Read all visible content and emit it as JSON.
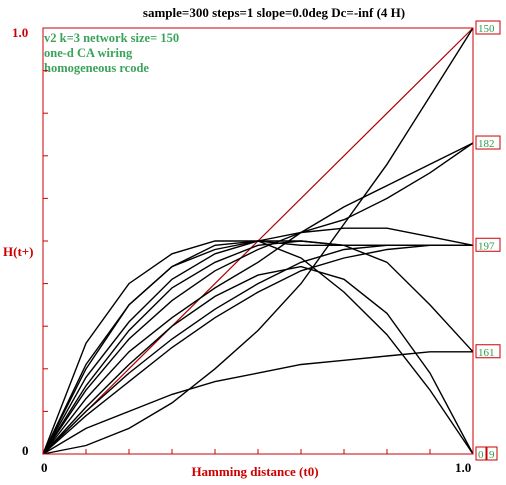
{
  "chart_data": {
    "type": "line",
    "title": "sample=300 steps=1  slope=0.0deg  Dc=-inf (4 H)",
    "xlabel": "Hamming distance (t0)",
    "ylabel": "H(t+)",
    "xlim": [
      0,
      1
    ],
    "ylim": [
      0,
      1
    ],
    "x_ticks": [
      "0",
      "1.0"
    ],
    "y_ticks": [
      "0",
      "1.0"
    ],
    "annotations": [
      "v2  k=3 network size= 150",
      "one-d CA wiring",
      "homogeneous rcode"
    ],
    "right_labels": [
      {
        "text": "150",
        "y": 1.0
      },
      {
        "text": "182",
        "y": 0.73
      },
      {
        "text": "197",
        "y": 0.49
      },
      {
        "text": "161",
        "y": 0.24
      },
      {
        "text": "0",
        "y": 0.0
      },
      {
        "text": "9",
        "y": 0.0
      }
    ],
    "series": [
      {
        "color": "#aa0000",
        "x": [
          0,
          1.0
        ],
        "y": [
          0,
          1.0
        ]
      },
      {
        "color": "#000000",
        "x": [
          0,
          0.1,
          0.2,
          0.3,
          0.4,
          0.5,
          0.6,
          0.7,
          0.8,
          0.9,
          1.0
        ],
        "y": [
          0,
          0.26,
          0.4,
          0.47,
          0.5,
          0.5,
          0.49,
          0.49,
          0.49,
          0.49,
          0.49
        ]
      },
      {
        "color": "#000000",
        "x": [
          0,
          0.1,
          0.2,
          0.3,
          0.4,
          0.5,
          0.6,
          0.7,
          0.8,
          0.9,
          1.0
        ],
        "y": [
          0,
          0.21,
          0.35,
          0.44,
          0.48,
          0.5,
          0.5,
          0.49,
          0.49,
          0.49,
          0.49
        ]
      },
      {
        "color": "#000000",
        "x": [
          0,
          0.1,
          0.2,
          0.3,
          0.4,
          0.5,
          0.6,
          0.7,
          0.8,
          0.9,
          1.0
        ],
        "y": [
          0,
          0.18,
          0.31,
          0.41,
          0.47,
          0.5,
          0.52,
          0.53,
          0.53,
          0.51,
          0.49
        ]
      },
      {
        "color": "#000000",
        "x": [
          0,
          0.1,
          0.2,
          0.3,
          0.4,
          0.5,
          0.6,
          0.7,
          0.8,
          0.9,
          1.0
        ],
        "y": [
          0,
          0.16,
          0.29,
          0.39,
          0.45,
          0.49,
          0.5,
          0.49,
          0.45,
          0.35,
          0.24
        ]
      },
      {
        "color": "#000000",
        "x": [
          0,
          0.1,
          0.2,
          0.3,
          0.4,
          0.5,
          0.6,
          0.7,
          0.8,
          0.9,
          1.0
        ],
        "y": [
          0,
          0.2,
          0.35,
          0.44,
          0.49,
          0.5,
          0.46,
          0.38,
          0.28,
          0.15,
          0.0
        ]
      },
      {
        "color": "#000000",
        "x": [
          0,
          0.1,
          0.2,
          0.3,
          0.4,
          0.5,
          0.6,
          0.7,
          0.8,
          0.9,
          1.0
        ],
        "y": [
          0,
          0.15,
          0.27,
          0.36,
          0.43,
          0.48,
          0.52,
          0.55,
          0.6,
          0.66,
          0.73
        ]
      },
      {
        "color": "#000000",
        "x": [
          0,
          0.1,
          0.2,
          0.3,
          0.4,
          0.5,
          0.6,
          0.7,
          0.8,
          0.9,
          1.0
        ],
        "y": [
          0,
          0.13,
          0.24,
          0.32,
          0.39,
          0.45,
          0.52,
          0.58,
          0.63,
          0.68,
          0.73
        ]
      },
      {
        "color": "#000000",
        "x": [
          0,
          0.1,
          0.2,
          0.3,
          0.4,
          0.5,
          0.6,
          0.7,
          0.8,
          0.9,
          1.0
        ],
        "y": [
          0,
          0.1,
          0.19,
          0.27,
          0.34,
          0.4,
          0.45,
          0.48,
          0.49,
          0.49,
          0.49
        ]
      },
      {
        "color": "#000000",
        "x": [
          0,
          0.1,
          0.2,
          0.3,
          0.4,
          0.5,
          0.6,
          0.7,
          0.8,
          0.9,
          1.0
        ],
        "y": [
          0,
          0.09,
          0.17,
          0.25,
          0.32,
          0.38,
          0.43,
          0.46,
          0.48,
          0.49,
          0.49
        ]
      },
      {
        "color": "#000000",
        "x": [
          0,
          0.1,
          0.2,
          0.3,
          0.4,
          0.5,
          0.6,
          0.7,
          0.8,
          0.9,
          1.0
        ],
        "y": [
          0,
          0.06,
          0.1,
          0.14,
          0.17,
          0.19,
          0.21,
          0.22,
          0.23,
          0.24,
          0.24
        ]
      },
      {
        "color": "#000000",
        "x": [
          0,
          0.1,
          0.2,
          0.3,
          0.4,
          0.5,
          0.6,
          0.7,
          0.8,
          0.9,
          1.0
        ],
        "y": [
          0,
          0.02,
          0.06,
          0.12,
          0.2,
          0.29,
          0.4,
          0.54,
          0.68,
          0.84,
          1.0
        ]
      },
      {
        "color": "#000000",
        "x": [
          0,
          0.1,
          0.2,
          0.3,
          0.4,
          0.5,
          0.6,
          0.7,
          0.8,
          0.9,
          1.0
        ],
        "y": [
          0,
          0.11,
          0.21,
          0.3,
          0.37,
          0.42,
          0.44,
          0.41,
          0.33,
          0.19,
          0.0
        ]
      }
    ]
  }
}
